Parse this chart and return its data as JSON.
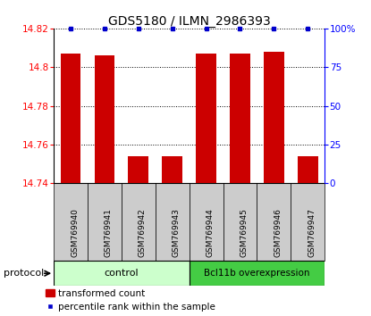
{
  "title": "GDS5180 / ILMN_2986393",
  "samples": [
    "GSM769940",
    "GSM769941",
    "GSM769942",
    "GSM769943",
    "GSM769944",
    "GSM769945",
    "GSM769946",
    "GSM769947"
  ],
  "bar_values": [
    14.807,
    14.806,
    14.754,
    14.754,
    14.807,
    14.807,
    14.808,
    14.754
  ],
  "percentile_values": [
    100,
    100,
    100,
    100,
    100,
    100,
    100,
    100
  ],
  "ylim_left": [
    14.74,
    14.82
  ],
  "ylim_right": [
    0,
    100
  ],
  "yticks_left": [
    14.74,
    14.76,
    14.78,
    14.8,
    14.82
  ],
  "yticks_right": [
    0,
    25,
    50,
    75,
    100
  ],
  "ytick_labels_right": [
    "0",
    "25",
    "50",
    "75",
    "100%"
  ],
  "bar_color": "#cc0000",
  "dot_color": "#0000cc",
  "grid_color": "#000000",
  "bg_color": "#ffffff",
  "plot_bg": "#ffffff",
  "control_samples": [
    0,
    1,
    2,
    3
  ],
  "treatment_samples": [
    4,
    5,
    6,
    7
  ],
  "control_label": "control",
  "treatment_label": "Bcl11b overexpression",
  "protocol_label": "protocol",
  "legend_bar_label": "transformed count",
  "legend_dot_label": "percentile rank within the sample",
  "control_color": "#ccffcc",
  "treatment_color": "#44cc44",
  "sample_box_color": "#cccccc",
  "title_fontsize": 10,
  "tick_fontsize": 7.5,
  "label_fontsize": 8
}
